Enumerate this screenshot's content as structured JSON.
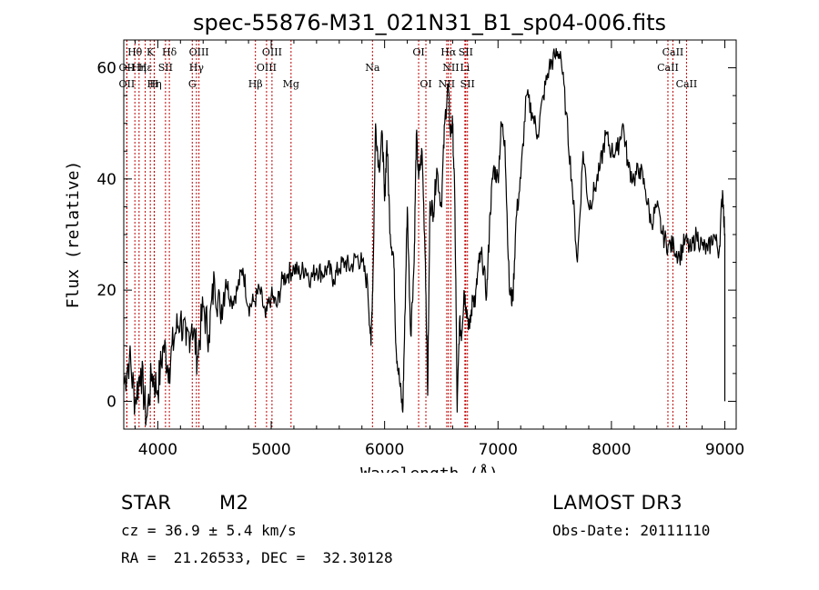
{
  "chart_data": {
    "type": "line",
    "title": "spec-55876-M31_021N31_B1_sp04-006.fits",
    "xlabel": "Wavelength (Å)",
    "ylabel": "Flux (relative)",
    "xlim": [
      3700,
      9100
    ],
    "ylim": [
      -5,
      65
    ],
    "xticks": [
      4000,
      5000,
      6000,
      7000,
      8000,
      9000
    ],
    "yticks": [
      0,
      20,
      40,
      60
    ],
    "grid": false,
    "series": [
      {
        "x": [
          3700,
          3750,
          3800,
          3850,
          3900,
          3950,
          4000,
          4050,
          4100,
          4150,
          4200,
          4250,
          4300,
          4350,
          4400,
          4450,
          4500,
          4550,
          4600,
          4650,
          4700,
          4750,
          4800,
          4850,
          4900,
          4950,
          5000,
          5050,
          5100,
          5150,
          5200,
          5250,
          5300,
          5350,
          5400,
          5450,
          5500,
          5550,
          5600,
          5650,
          5700,
          5750,
          5800,
          5850,
          5880,
          5900,
          5920,
          5950,
          5980,
          6000,
          6020,
          6050,
          6080,
          6100,
          6130,
          6160,
          6180,
          6200,
          6230,
          6260,
          6280,
          6300,
          6330,
          6360,
          6380,
          6400,
          6430,
          6460,
          6500,
          6530,
          6560,
          6580,
          6600,
          6620,
          6640,
          6660,
          6680,
          6700,
          6720,
          6750,
          6780,
          6800,
          6830,
          6860,
          6900,
          6930,
          6960,
          7000,
          7030,
          7060,
          7100,
          7130,
          7160,
          7200,
          7250,
          7300,
          7350,
          7400,
          7450,
          7500,
          7550,
          7600,
          7650,
          7700,
          7750,
          7800,
          7850,
          7900,
          7950,
          8000,
          8050,
          8100,
          8150,
          8200,
          8250,
          8300,
          8350,
          8400,
          8450,
          8500,
          8550,
          8600,
          8650,
          8700,
          8750,
          8800,
          8850,
          8900,
          8950,
          8980,
          9000
        ],
        "y": [
          3,
          8,
          0,
          6,
          -3,
          5,
          2,
          10,
          6,
          12,
          15,
          10,
          14,
          8,
          17,
          12,
          22,
          16,
          22,
          18,
          20,
          24,
          17,
          18,
          20,
          15,
          19,
          17,
          22,
          23,
          24,
          23,
          24,
          22,
          24,
          23,
          24,
          22,
          24,
          25,
          24,
          26,
          25,
          21,
          10,
          25,
          50,
          42,
          48,
          36,
          47,
          30,
          26,
          10,
          4,
          -2,
          16,
          35,
          12,
          25,
          48,
          40,
          45,
          25,
          1,
          36,
          34,
          42,
          35,
          50,
          57,
          48,
          50,
          35,
          -2,
          14,
          12,
          20,
          17,
          13,
          19,
          18,
          25,
          26,
          19,
          34,
          42,
          40,
          50,
          47,
          20,
          18,
          33,
          40,
          55,
          52,
          48,
          55,
          60,
          62,
          63,
          52,
          40,
          25,
          45,
          35,
          38,
          42,
          48,
          45,
          45,
          50,
          42,
          40,
          42,
          38,
          32,
          35,
          30,
          28,
          28,
          26,
          29,
          27,
          30,
          28,
          27,
          30,
          27,
          38,
          30
        ]
      }
    ],
    "lines": [
      {
        "label": "Hθ",
        "x": 3798,
        "row": 0
      },
      {
        "label": "OII",
        "x": 3727,
        "row": 1
      },
      {
        "label": "OII",
        "x": 3727,
        "row": 2
      },
      {
        "label": "Hη",
        "x": 3835,
        "row": 1
      },
      {
        "label": "Hε",
        "x": 3889,
        "row": 1
      },
      {
        "label": "Hη",
        "x": 3970,
        "row": 2
      },
      {
        "label": "K",
        "x": 3934,
        "row": 0
      },
      {
        "label": "SII",
        "x": 4068,
        "row": 1
      },
      {
        "label": "H",
        "x": 3968,
        "row": 2
      },
      {
        "label": "Hδ",
        "x": 4102,
        "row": 0
      },
      {
        "label": "OIII",
        "x": 4363,
        "row": 0
      },
      {
        "label": "Hγ",
        "x": 4341,
        "row": 1
      },
      {
        "label": "G",
        "x": 4304,
        "row": 2
      },
      {
        "label": "OIII",
        "x": 5007,
        "row": 0
      },
      {
        "label": "OIII",
        "x": 4959,
        "row": 1
      },
      {
        "label": "Hβ",
        "x": 4861,
        "row": 2
      },
      {
        "label": "Mg",
        "x": 5175,
        "row": 2
      },
      {
        "label": "Na",
        "x": 5893,
        "row": 1
      },
      {
        "label": "OI",
        "x": 6300,
        "row": 0
      },
      {
        "label": "OI",
        "x": 6364,
        "row": 2
      },
      {
        "label": "Hα",
        "x": 6563,
        "row": 0
      },
      {
        "label": "SII",
        "x": 6716,
        "row": 0
      },
      {
        "label": "NII",
        "x": 6584,
        "row": 1
      },
      {
        "label": "Li",
        "x": 6708,
        "row": 1
      },
      {
        "label": "NII",
        "x": 6548,
        "row": 2
      },
      {
        "label": "SII",
        "x": 6731,
        "row": 2
      },
      {
        "label": "CaII",
        "x": 8542,
        "row": 0
      },
      {
        "label": "CaII",
        "x": 8498,
        "row": 1
      },
      {
        "label": "CaII",
        "x": 8662,
        "row": 2
      }
    ]
  },
  "info": {
    "class": "STAR",
    "subclass": "M2",
    "survey": "LAMOST DR3",
    "cz": "cz = 36.9 ± 5.4 km/s",
    "obs_date": "Obs-Date: 20111110",
    "coords": "RA =  21.26533, DEC =  32.30128"
  },
  "colors": {
    "axis": "#000000",
    "spectrum": "#000000",
    "line_marker": "#c00000"
  }
}
